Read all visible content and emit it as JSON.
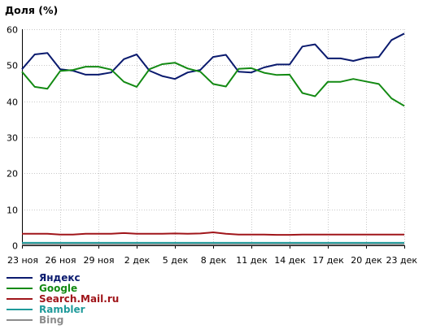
{
  "chart_data": {
    "type": "line",
    "title": "Доля (%)",
    "xlabel": "",
    "ylabel": "",
    "ylim": [
      0,
      60
    ],
    "yticks": [
      0,
      10,
      20,
      30,
      40,
      50,
      60
    ],
    "grid": true,
    "legend_position": "bottom-left",
    "categories": [
      "23 ноя",
      "24 ноя",
      "25 ноя",
      "26 ноя",
      "27 ноя",
      "28 ноя",
      "29 ноя",
      "30 ноя",
      "1 дек",
      "2 дек",
      "3 дек",
      "4 дек",
      "5 дек",
      "6 дек",
      "7 дек",
      "8 дек",
      "9 дек",
      "10 дек",
      "11 дек",
      "12 дек",
      "13 дек",
      "14 дек",
      "15 дек",
      "16 дек",
      "17 дек",
      "18 дек",
      "19 дек",
      "20 дек",
      "21 дек",
      "22 дек",
      "23 дек"
    ],
    "tick_labels": [
      "23 ноя",
      "26 ноя",
      "29 ноя",
      "2 дек",
      "5 дек",
      "8 дек",
      "11 дек",
      "14 дек",
      "17 дек",
      "20 дек",
      "23 дек"
    ],
    "tick_every": 3,
    "series": [
      {
        "name": "Яндекс",
        "color": "#0a1a6e",
        "values": [
          48.9,
          53.0,
          53.4,
          48.9,
          48.5,
          47.4,
          47.4,
          48.0,
          51.7,
          53.0,
          48.5,
          47.0,
          46.2,
          48.0,
          48.7,
          52.3,
          52.9,
          48.2,
          48.0,
          49.4,
          50.2,
          50.2,
          55.2,
          55.8,
          51.9,
          51.9,
          51.2,
          52.1,
          52.3,
          57.0,
          58.8
        ]
      },
      {
        "name": "Google",
        "color": "#138a13",
        "values": [
          48.2,
          44.0,
          43.5,
          48.4,
          48.7,
          49.6,
          49.6,
          48.8,
          45.4,
          44.0,
          48.9,
          50.3,
          50.7,
          49.1,
          48.2,
          44.8,
          44.1,
          49.0,
          49.2,
          47.9,
          47.3,
          47.4,
          42.3,
          41.4,
          45.4,
          45.4,
          46.2,
          45.5,
          44.8,
          40.8,
          38.7
        ]
      },
      {
        "name": "Search.Mail.ru",
        "color": "#a0151a",
        "values": [
          3.2,
          3.2,
          3.2,
          3.0,
          3.0,
          3.2,
          3.2,
          3.2,
          3.4,
          3.2,
          3.2,
          3.2,
          3.3,
          3.2,
          3.3,
          3.6,
          3.2,
          3.0,
          3.0,
          3.0,
          2.9,
          2.9,
          3.0,
          3.0,
          3.0,
          3.0,
          3.0,
          3.0,
          3.0,
          3.0,
          3.0
        ]
      },
      {
        "name": "Rambler",
        "color": "#1f9a9a",
        "values": [
          0.7,
          0.7,
          0.7,
          0.7,
          0.7,
          0.7,
          0.7,
          0.7,
          0.7,
          0.7,
          0.7,
          0.7,
          0.7,
          0.7,
          0.7,
          0.7,
          0.7,
          0.7,
          0.7,
          0.7,
          0.7,
          0.7,
          0.7,
          0.7,
          0.7,
          0.7,
          0.7,
          0.7,
          0.7,
          0.7,
          0.7
        ]
      },
      {
        "name": "Bing",
        "color": "#8c8c8c",
        "values": [
          0.2,
          0.2,
          0.2,
          0.2,
          0.2,
          0.2,
          0.2,
          0.2,
          0.2,
          0.2,
          0.2,
          0.2,
          0.2,
          0.2,
          0.2,
          0.2,
          0.2,
          0.2,
          0.2,
          0.2,
          0.2,
          0.2,
          0.2,
          0.2,
          0.2,
          0.2,
          0.2,
          0.2,
          0.2,
          0.2,
          0.2
        ]
      }
    ]
  }
}
